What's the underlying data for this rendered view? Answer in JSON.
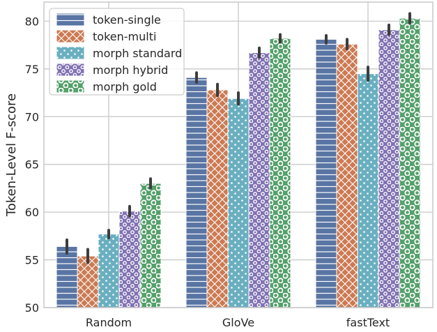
{
  "chart_data": {
    "type": "bar",
    "title": "",
    "xlabel": "",
    "ylabel": "Token-Level F-score",
    "ylim": [
      50,
      82
    ],
    "yticks": [
      "50",
      "55",
      "60",
      "65",
      "70",
      "75",
      "80"
    ],
    "grid": true,
    "legend_position": "top-left",
    "categories": [
      "Random",
      "GloVe",
      "fastText"
    ],
    "series": [
      {
        "name": "token-single",
        "color": "#5975a4",
        "pattern": "horizontal-lines",
        "values": [
          56.4,
          74.1,
          78.1
        ],
        "err": [
          0.7,
          0.5,
          0.4
        ]
      },
      {
        "name": "token-multi",
        "color": "#cc7a53",
        "pattern": "crosshatch",
        "values": [
          55.4,
          72.8,
          77.6
        ],
        "err": [
          0.7,
          0.6,
          0.5
        ]
      },
      {
        "name": "morph standard",
        "color": "#6aafc0",
        "pattern": "dots",
        "values": [
          57.7,
          71.9,
          74.5
        ],
        "err": [
          0.4,
          0.6,
          0.7
        ]
      },
      {
        "name": "morph hybrid",
        "color": "#8273b3",
        "pattern": "small-circles",
        "values": [
          60.1,
          76.7,
          79.1
        ],
        "err": [
          0.5,
          0.5,
          0.5
        ]
      },
      {
        "name": "morph gold",
        "color": "#55a06b",
        "pattern": "large-circles",
        "values": [
          63.0,
          78.2,
          80.3
        ],
        "err": [
          0.5,
          0.4,
          0.5
        ]
      }
    ]
  }
}
